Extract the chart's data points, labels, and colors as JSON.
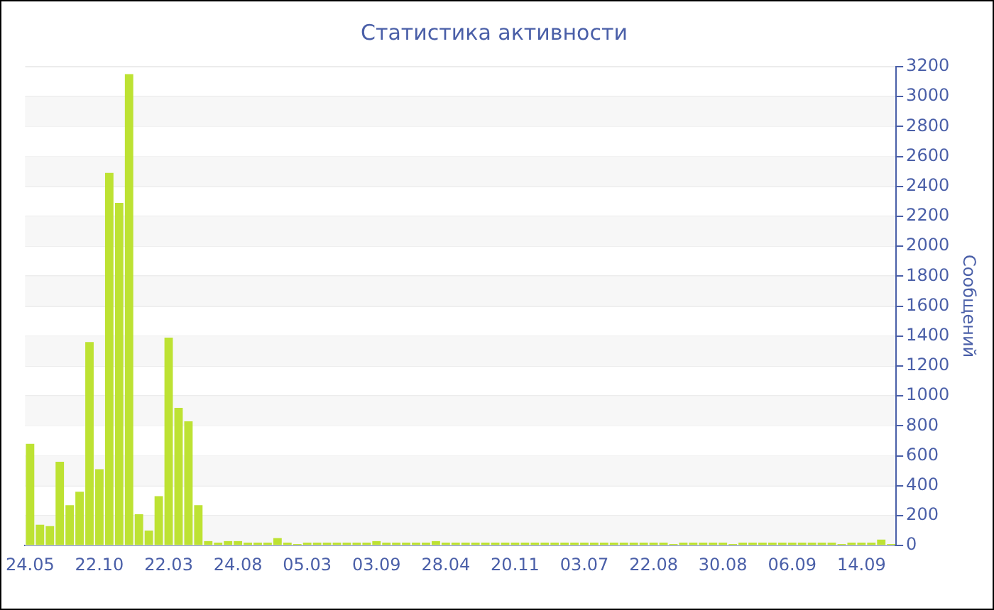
{
  "chart_data": {
    "type": "bar",
    "title": "Статистика активности",
    "y2label": "Сообщений",
    "categories": [
      "24.05",
      null,
      null,
      null,
      null,
      null,
      null,
      "22.10",
      null,
      null,
      null,
      null,
      null,
      null,
      "22.03",
      null,
      null,
      null,
      null,
      null,
      null,
      "24.08",
      null,
      null,
      null,
      null,
      null,
      null,
      "05.03",
      null,
      null,
      null,
      null,
      null,
      null,
      "03.09",
      null,
      null,
      null,
      null,
      null,
      null,
      "28.04",
      null,
      null,
      null,
      null,
      null,
      null,
      "20.11",
      null,
      null,
      null,
      null,
      null,
      null,
      "03.07",
      null,
      null,
      null,
      null,
      null,
      null,
      "22.08",
      null,
      null,
      null,
      null,
      null,
      null,
      "30.08",
      null,
      null,
      null,
      null,
      null,
      null,
      "06.09",
      null,
      null,
      null,
      null,
      null,
      null,
      "14.09",
      null,
      null,
      null
    ],
    "series": [
      {
        "color": "#bde233",
        "axis": "y2",
        "values": [
          680,
          140,
          130,
          560,
          270,
          360,
          1360,
          510,
          2490,
          2290,
          3150,
          210,
          100,
          330,
          1390,
          920,
          830,
          270,
          30,
          20,
          30,
          30,
          20,
          20,
          20,
          50,
          20,
          10,
          20,
          20,
          20,
          20,
          20,
          20,
          20,
          30,
          20,
          20,
          20,
          20,
          20,
          30,
          20,
          20,
          20,
          20,
          20,
          20,
          20,
          20,
          20,
          20,
          20,
          20,
          20,
          20,
          20,
          20,
          20,
          20,
          20,
          20,
          20,
          20,
          20,
          10,
          20,
          20,
          20,
          20,
          20,
          10,
          20,
          20,
          20,
          20,
          20,
          20,
          20,
          20,
          20,
          20,
          10,
          20,
          20,
          20,
          40,
          10
        ]
      }
    ],
    "y2lim": [
      0,
      3200
    ],
    "y2ticks": [
      0,
      200,
      400,
      600,
      800,
      1000,
      1200,
      1400,
      1600,
      1800,
      2000,
      2200,
      2400,
      2600,
      2800,
      3000,
      3200
    ],
    "grid": "y",
    "legend": false
  }
}
